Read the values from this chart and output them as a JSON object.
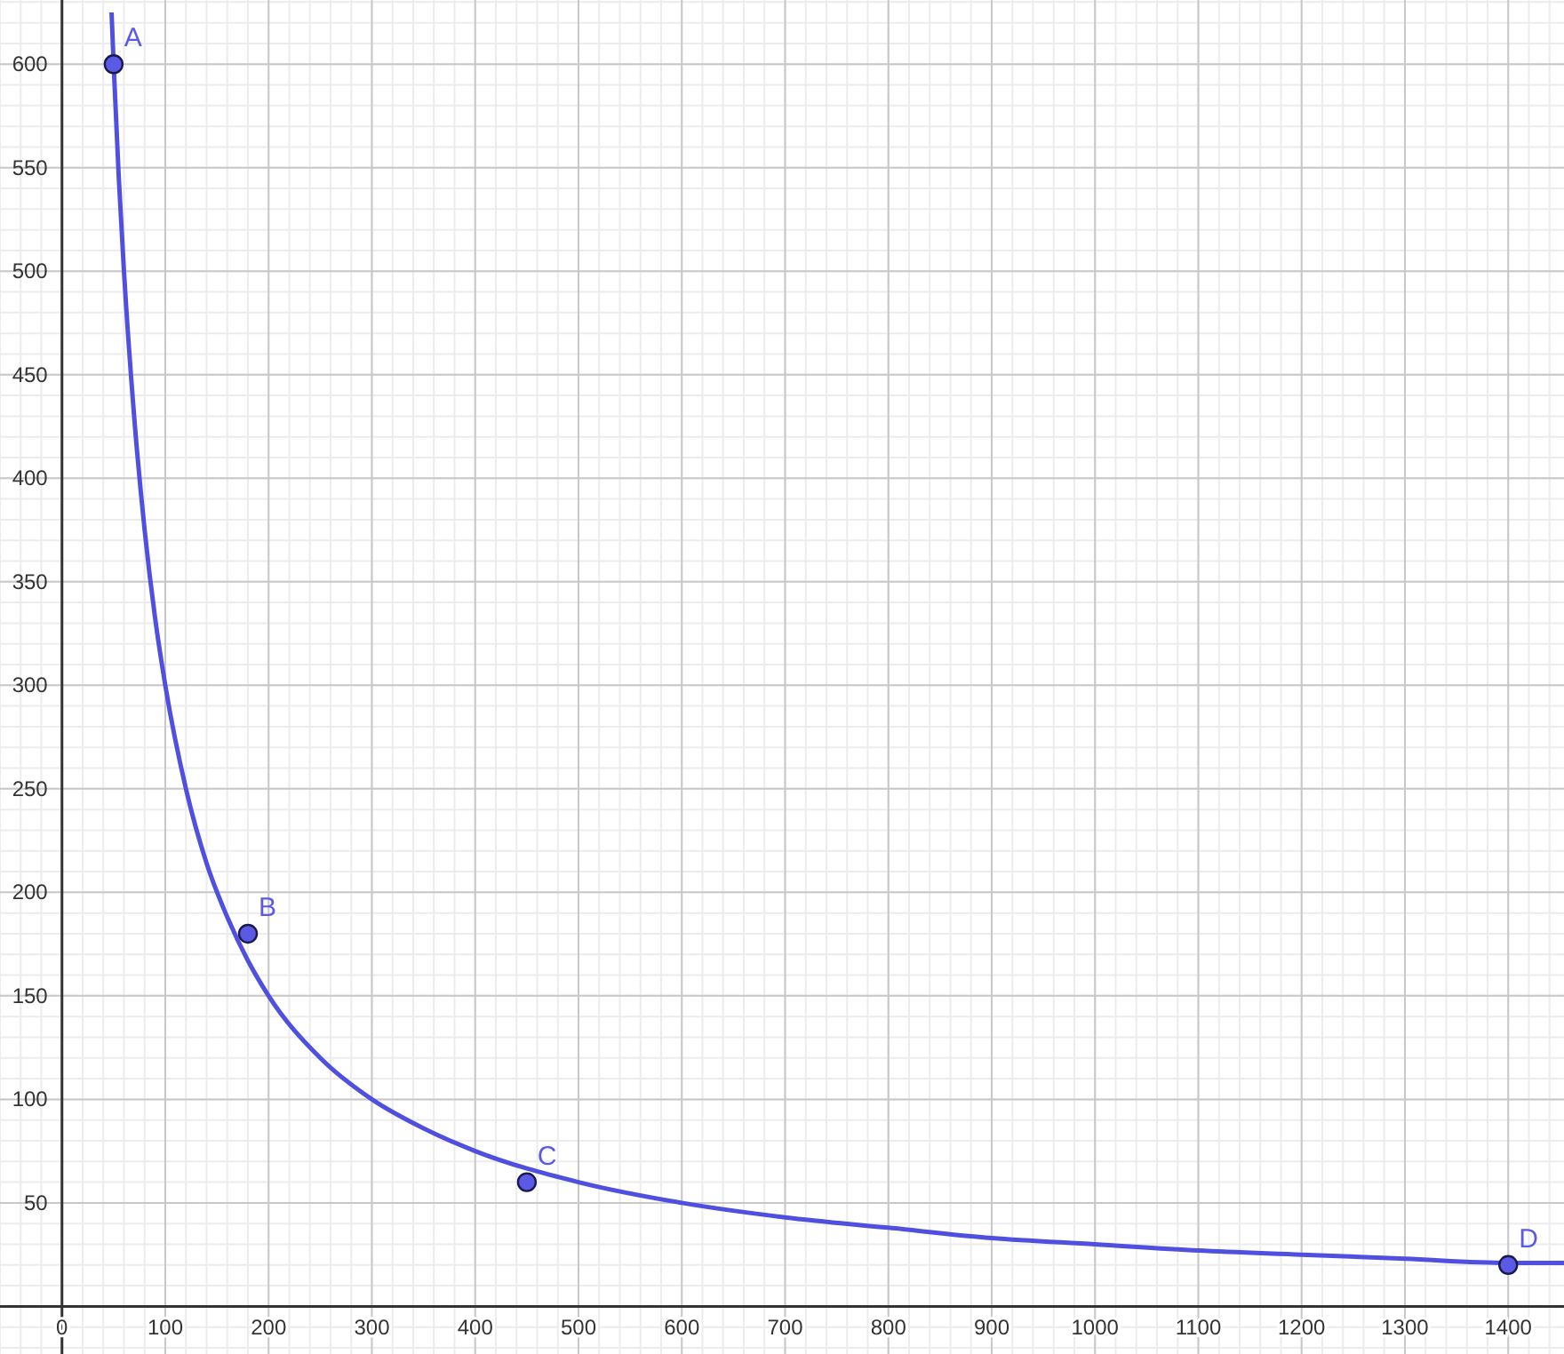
{
  "chart_data": {
    "type": "line",
    "xlim": [
      -60,
      1454
    ],
    "ylim": [
      -23,
      631
    ],
    "xticks": [
      0,
      100,
      200,
      300,
      400,
      500,
      600,
      700,
      800,
      900,
      1000,
      1100,
      1200,
      1300,
      1400
    ],
    "yticks": [
      50,
      100,
      150,
      200,
      250,
      300,
      350,
      400,
      450,
      500,
      550,
      600
    ],
    "grid": true,
    "marker": "none",
    "line_style": "solid",
    "series": [
      {
        "type": "line",
        "color": "#5050e0",
        "x": [
          48,
          50,
          55,
          60,
          70,
          80,
          90,
          100,
          120,
          140,
          160,
          180,
          200,
          250,
          300,
          350,
          400,
          500,
          600,
          700,
          800,
          900,
          1000,
          1100,
          1200,
          1300,
          1400,
          1454
        ],
        "values": [
          625,
          600,
          545,
          500,
          429,
          375,
          333,
          300,
          250,
          214,
          188,
          167,
          150,
          120,
          100,
          86,
          75,
          60,
          50,
          43,
          38,
          33,
          30,
          27,
          25,
          23,
          21,
          21
        ]
      },
      {
        "type": "scatter",
        "color": "#5a5ae6",
        "marker": "circle",
        "x": [
          50,
          180,
          450,
          1400
        ],
        "values": [
          600,
          180,
          60,
          20
        ]
      }
    ],
    "annotations": [
      {
        "text": "A",
        "x": 50,
        "y": 600
      },
      {
        "text": "B",
        "x": 180,
        "y": 180
      },
      {
        "text": "C",
        "x": 450,
        "y": 60
      },
      {
        "text": "D",
        "x": 1400,
        "y": 20
      }
    ]
  }
}
